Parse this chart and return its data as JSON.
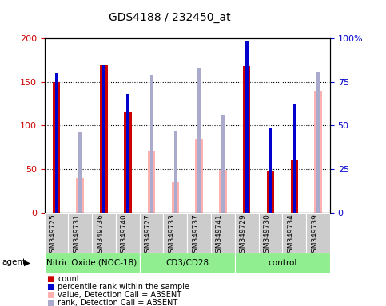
{
  "title": "GDS4188 / 232450_at",
  "samples": [
    "GSM349725",
    "GSM349731",
    "GSM349736",
    "GSM349740",
    "GSM349727",
    "GSM349733",
    "GSM349737",
    "GSM349741",
    "GSM349729",
    "GSM349730",
    "GSM349734",
    "GSM349739"
  ],
  "groups": [
    {
      "label": "Nitric Oxide (NOC-18)",
      "start": 0,
      "end": 3,
      "color": "#90EE90"
    },
    {
      "label": "CD3/CD28",
      "start": 4,
      "end": 7,
      "color": "#90EE90"
    },
    {
      "label": "control",
      "start": 8,
      "end": 11,
      "color": "#90EE90"
    }
  ],
  "count": [
    150,
    null,
    170,
    115,
    null,
    null,
    null,
    null,
    168,
    48,
    60,
    null
  ],
  "percentile_rank": [
    80,
    null,
    85,
    68,
    null,
    null,
    null,
    null,
    98,
    49,
    62,
    null
  ],
  "value_absent": [
    null,
    40,
    null,
    null,
    70,
    35,
    84,
    49,
    null,
    null,
    null,
    140
  ],
  "rank_absent": [
    null,
    46,
    null,
    null,
    79,
    47,
    83,
    56,
    null,
    null,
    null,
    81
  ],
  "ylim_left": [
    0,
    200
  ],
  "ylim_right": [
    0,
    100
  ],
  "yticks_left": [
    0,
    50,
    100,
    150,
    200
  ],
  "yticks_right": [
    0,
    25,
    50,
    75,
    100
  ],
  "ytick_labels_right": [
    "0",
    "25",
    "50",
    "75",
    "100%"
  ],
  "grid_values": [
    50,
    100,
    150
  ],
  "count_color": "#CC0000",
  "rank_color": "#0000CC",
  "value_absent_color": "#FFB0B0",
  "rank_absent_color": "#AAAACC",
  "left_label_color": "#CC0000",
  "right_label_color": "#0000CC",
  "group_color": "#90EE90",
  "xtick_bg": "#CCCCCC"
}
